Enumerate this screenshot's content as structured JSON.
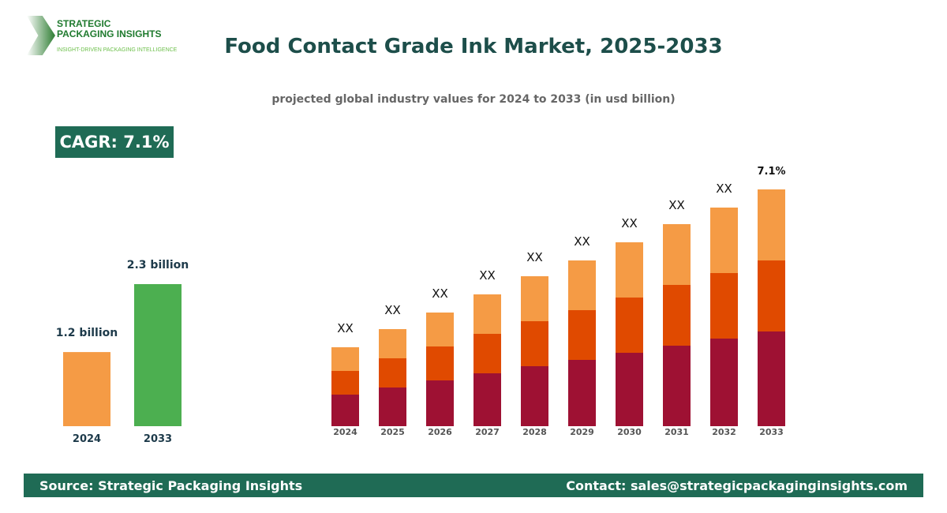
{
  "logo": {
    "line1": "STRATEGIC",
    "line2": "PACKAGING INSIGHTS",
    "tagline": "INSIGHT-DRIVEN PACKAGING INTELLIGENCE"
  },
  "header": {
    "title": "Food Contact Grade Ink Market, 2025-2033",
    "subtitle": "projected global industry values for 2024 to 2033 (in usd billion)"
  },
  "cagr_badge": "CAGR: 7.1%",
  "chart_data": [
    {
      "type": "bar",
      "categories": [
        "2024",
        "2033"
      ],
      "values": [
        1.2,
        2.3
      ],
      "data_labels": [
        "1.2 billion",
        "2.3 billion"
      ],
      "colors": [
        "#f59b45",
        "#4caf50"
      ],
      "ylim": [
        0,
        2.3
      ],
      "grid": false
    },
    {
      "type": "bar",
      "stacked": true,
      "categories": [
        "2024",
        "2025",
        "2026",
        "2027",
        "2028",
        "2029",
        "2030",
        "2031",
        "2032",
        "2033"
      ],
      "series": [
        {
          "color": "#9e1133",
          "values": [
            40,
            49,
            58,
            67,
            76,
            84,
            93,
            102,
            111,
            120
          ]
        },
        {
          "color": "#e04a00",
          "values": [
            30,
            37,
            43,
            50,
            57,
            63,
            70,
            77,
            83,
            90
          ]
        },
        {
          "color": "#f59b45",
          "values": [
            30,
            37,
            43,
            50,
            57,
            63,
            70,
            77,
            83,
            90
          ]
        }
      ],
      "data_labels": [
        "XX",
        "XX",
        "XX",
        "XX",
        "XX",
        "XX",
        "XX",
        "XX",
        "XX",
        "7.1%"
      ],
      "axis": "none",
      "grid": false
    }
  ],
  "footer": {
    "source": "Source: Strategic Packaging Insights",
    "contact": "Contact: sales@strategicpackaginginsights.com"
  }
}
